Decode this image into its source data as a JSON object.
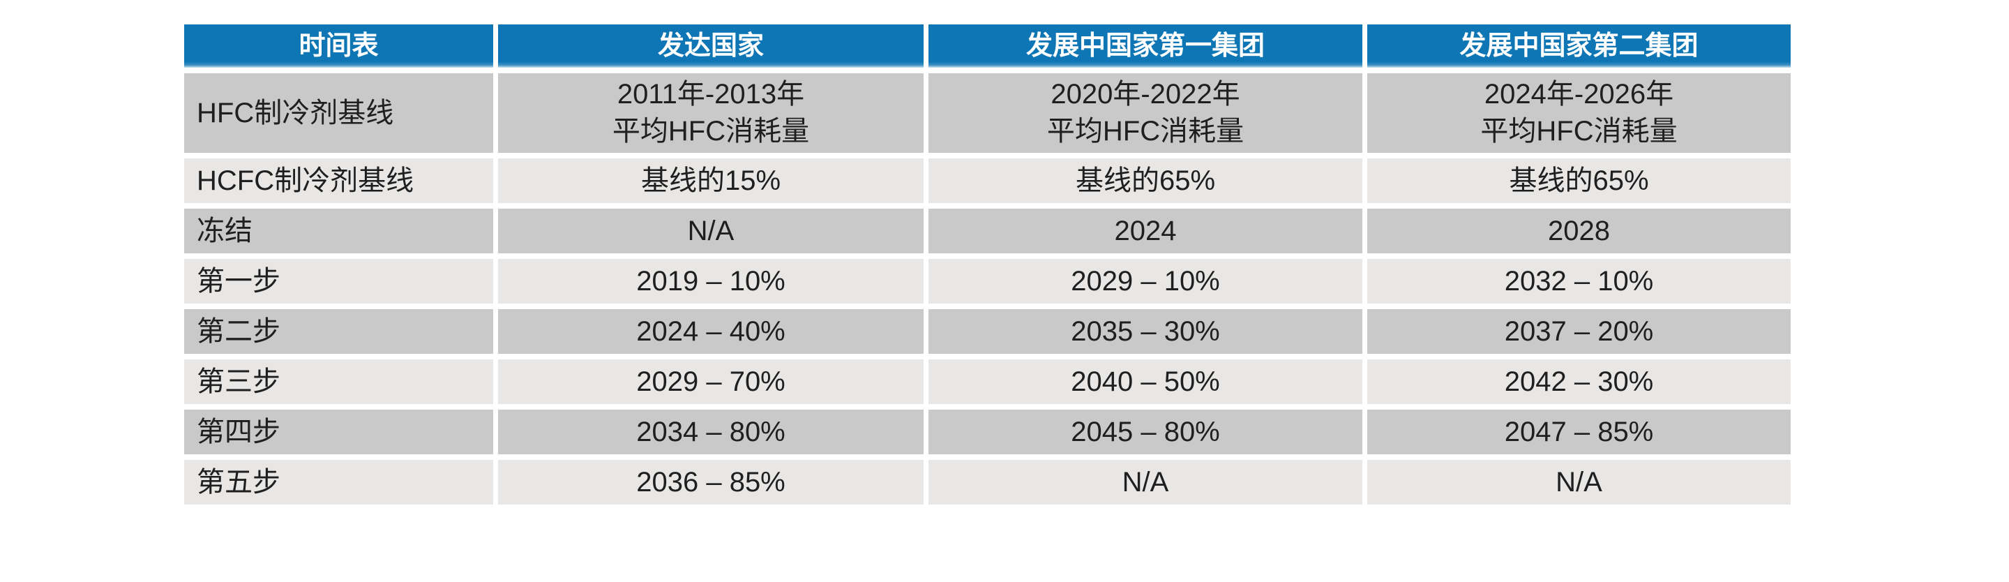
{
  "colors": {
    "page_bg": "#ffffff",
    "header_bg": "#0e76b4",
    "header_fade": "#cfe3f0",
    "header_text": "#ffffff",
    "row_dark": "#c9c9c9",
    "row_light": "#e8e7e5",
    "body_text": "#1f1f1f"
  },
  "table": {
    "headers": [
      "时间表",
      "发达国家",
      "发展中国家第一集团",
      "发展中国家第二集团"
    ],
    "rows": [
      {
        "label": "HFC制冷剂基线",
        "values": [
          "2011年-2013年\n平均HFC消耗量",
          "2020年-2022年\n平均HFC消耗量",
          "2024年-2026年\n平均HFC消耗量"
        ]
      },
      {
        "label": "HCFC制冷剂基线",
        "values": [
          "基线的15%",
          "基线的65%",
          "基线的65%"
        ]
      },
      {
        "label": "冻结",
        "values": [
          "N/A",
          "2024",
          "2028"
        ]
      },
      {
        "label": "第一步",
        "values": [
          "2019 – 10%",
          "2029 – 10%",
          "2032 – 10%"
        ]
      },
      {
        "label": "第二步",
        "values": [
          "2024 – 40%",
          "2035 – 30%",
          "2037 – 20%"
        ]
      },
      {
        "label": "第三步",
        "values": [
          "2029 – 70%",
          "2040 – 50%",
          "2042 – 30%"
        ]
      },
      {
        "label": "第四步",
        "values": [
          "2034 – 80%",
          "2045 – 80%",
          "2047 – 85%"
        ]
      },
      {
        "label": "第五步",
        "values": [
          "2036 – 85%",
          "N/A",
          "N/A"
        ]
      }
    ]
  }
}
